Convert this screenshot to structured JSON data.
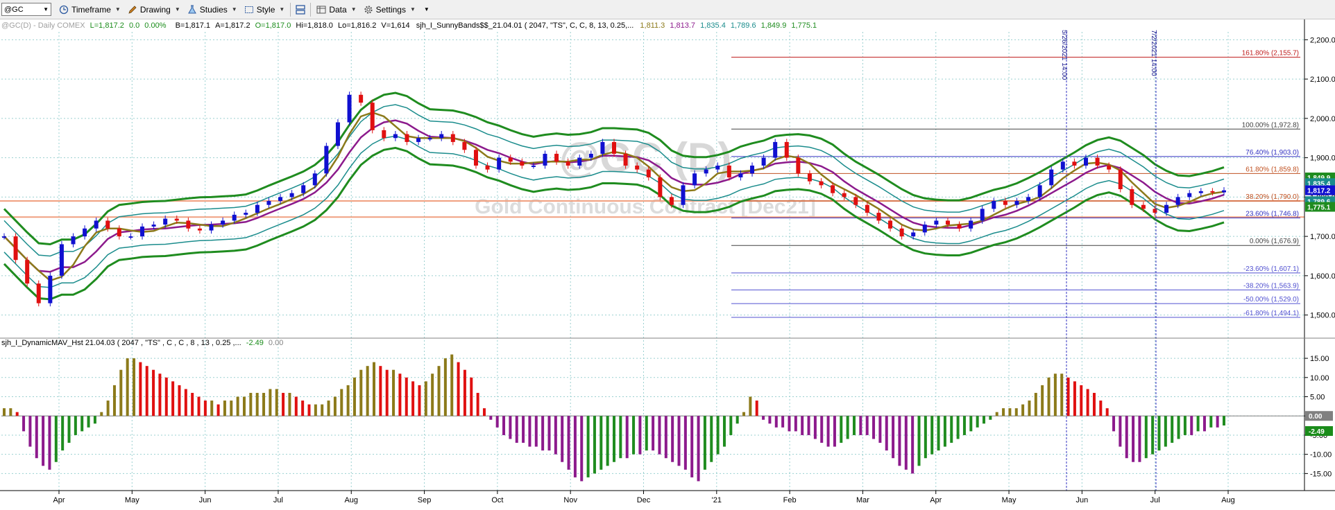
{
  "toolbar": {
    "symbol": "@GC",
    "timeframe": "Timeframe",
    "drawing": "Drawing",
    "studies": "Studies",
    "style": "Style",
    "data": "Data",
    "settings": "Settings"
  },
  "header": {
    "symbol_info": "@GC(D) - Daily  COMEX",
    "last": "L=1,817.2",
    "change": "0.0",
    "pct": "0.00%",
    "bid": "B=1,817.1",
    "ask": "A=1,817.2",
    "open": "O=1,817.0",
    "high": "Hi=1,818.0",
    "low": "Lo=1,816.2",
    "volume": "V=1,614",
    "study": "sjh_I_SunnyBands$$_21.04.01 (  2047,  \"TS\",  C,  C,    8,  13,  0.25,...",
    "study_values": [
      "1,811.3",
      "1,813.7",
      "1,835.4",
      "1,789.6",
      "1,849.9",
      "1,775.1"
    ],
    "lower_study": "sjh_I_DynamicMAV_Hst 21.04.03 ( 2047 , \"TS\" , C , C ,  8 , 13 , 0.25 ,...",
    "lower_value": "-2.49",
    "lower_zero": "0.00"
  },
  "watermark": {
    "symbol": "@GC (D)",
    "name": "Gold Continuous Contract [Dec21]"
  },
  "colors": {
    "green_band": "#1f8c1f",
    "teal_band": "#1a8c8c",
    "purple_ma": "#8c1a8c",
    "olive_ma": "#8c7a1a",
    "up_bar": "#1010d0",
    "down_bar": "#e01010",
    "fib_red": "#c02020",
    "fib_blue": "#3030c0",
    "hline": "#f0a080"
  },
  "chart_data": [
    {
      "type": "line",
      "title": "@GC(D) - Daily COMEX",
      "ylabel": "",
      "ylim": [
        1450,
        2220
      ],
      "y_ticks": [
        "2,200.0",
        "2,100.0",
        "2,000.0",
        "1,900.0",
        "1,800.0",
        "1,700.0",
        "1,600.0",
        "1,500.0"
      ],
      "y_tick_values": [
        2200,
        2100,
        2000,
        1900,
        1800,
        1700,
        1600,
        1500
      ],
      "x_labels": [
        "Apr",
        "May",
        "Jun",
        "Jul",
        "Aug",
        "Sep",
        "Oct",
        "Nov",
        "Dec",
        "'21",
        "Feb",
        "Mar",
        "Apr",
        "May",
        "Jun",
        "Jul",
        "Aug"
      ],
      "x_label_index": [
        0,
        1,
        2,
        3,
        4,
        5,
        6,
        7,
        8,
        9,
        10,
        11,
        12,
        13,
        14,
        15,
        16
      ],
      "price_series": [
        1700,
        1640,
        1580,
        1530,
        1600,
        1680,
        1700,
        1720,
        1740,
        1720,
        1700,
        1700,
        1725,
        1730,
        1745,
        1740,
        1720,
        1715,
        1730,
        1740,
        1755,
        1760,
        1780,
        1790,
        1800,
        1810,
        1830,
        1860,
        1930,
        1990,
        2060,
        2040,
        1970,
        1950,
        1960,
        1940,
        1950,
        1950,
        1960,
        1940,
        1920,
        1880,
        1870,
        1900,
        1890,
        1880,
        1880,
        1910,
        1890,
        1880,
        1900,
        1910,
        1940,
        1910,
        1880,
        1870,
        1850,
        1800,
        1780,
        1830,
        1860,
        1870,
        1880,
        1850,
        1860,
        1880,
        1900,
        1940,
        1900,
        1860,
        1840,
        1830,
        1810,
        1800,
        1780,
        1760,
        1740,
        1720,
        1700,
        1710,
        1730,
        1740,
        1730,
        1720,
        1740,
        1770,
        1790,
        1780,
        1790,
        1800,
        1830,
        1870,
        1890,
        1880,
        1900,
        1880,
        1870,
        1820,
        1780,
        1770,
        1760,
        1780,
        1800,
        1810,
        1815,
        1812,
        1817
      ],
      "series": [
        {
          "name": "1,811.3",
          "color": "#8c7a1a"
        },
        {
          "name": "1,813.7",
          "color": "#8c1a8c"
        },
        {
          "name": "1,835.4",
          "color": "#1a8c8c"
        },
        {
          "name": "1,789.6",
          "color": "#1a8c8c"
        },
        {
          "name": "1,849.9",
          "color": "#1f8c1f"
        },
        {
          "name": "1,775.1",
          "color": "#1f8c1f"
        }
      ],
      "fib_levels": [
        {
          "label": "161.80% (2,155.7)",
          "value": 2155.7,
          "color": "#c02020"
        },
        {
          "label": "100.00% (1,972.8)",
          "value": 1972.8,
          "color": "#404040"
        },
        {
          "label": "76.40% (1,903.0)",
          "value": 1903.0,
          "color": "#3030c0"
        },
        {
          "label": "61.80% (1,859.8)",
          "value": 1859.8,
          "color": "#c05020"
        },
        {
          "label": "38.20% (1,790.0)",
          "value": 1790.0,
          "color": "#c05020"
        },
        {
          "label": "23.60% (1,746.8)",
          "value": 1746.8,
          "color": "#3030c0"
        },
        {
          "label": "0.00% (1,676.9)",
          "value": 1676.9,
          "color": "#404040"
        },
        {
          "label": "-23.60% (1,607.1)",
          "value": 1607.1,
          "color": "#5050d0"
        },
        {
          "label": "-38.20% (1,563.9)",
          "value": 1563.9,
          "color": "#5050d0"
        },
        {
          "label": "-50.00% (1,529.0)",
          "value": 1529.0,
          "color": "#5050d0"
        },
        {
          "label": "-61.80% (1,494.1)",
          "value": 1494.1,
          "color": "#5050d0"
        }
      ],
      "horizontal_lines": [
        1790,
        1749
      ],
      "price_tags": [
        {
          "text": "1,849.9",
          "value": 1849.9,
          "color": "#1f8c1f"
        },
        {
          "text": "1,835.4",
          "value": 1835.4,
          "color": "#1a8c8c"
        },
        {
          "text": "1,817.2",
          "value": 1817.2,
          "color": "#1010d0"
        },
        {
          "text": "1,789.6",
          "value": 1789.6,
          "color": "#1a8c8c"
        },
        {
          "text": "1,775.1",
          "value": 1775.1,
          "color": "#1f8c1f"
        }
      ],
      "vertical_markers": [
        {
          "label": "5/26/2021 14:00"
        },
        {
          "label": "7/2/2021 14:00"
        }
      ]
    },
    {
      "type": "bar",
      "title": "sjh_I_DynamicMAV_Hst 21.04.03",
      "ylim": [
        -18,
        17
      ],
      "y_ticks": [
        "15.00",
        "10.00",
        "5.00",
        "0.00",
        "-5.00",
        "-10.00",
        "-15.00"
      ],
      "y_tick_values": [
        15,
        10,
        5,
        0,
        -5,
        -10,
        -15
      ],
      "last_value": "-2.49",
      "values": [
        2,
        2,
        1,
        -4,
        -8,
        -11,
        -13,
        -14,
        -12,
        -9,
        -7,
        -5,
        -4,
        -3,
        -2,
        1,
        4,
        8,
        12,
        15,
        15,
        14,
        13,
        12,
        11,
        10,
        9,
        8,
        7,
        6,
        5,
        4,
        4,
        3,
        4,
        4,
        5,
        5,
        6,
        6,
        6,
        7,
        7,
        6,
        6,
        5,
        4,
        3,
        3,
        3,
        4,
        5,
        7,
        8,
        10,
        12,
        13,
        14,
        13,
        12,
        12,
        11,
        10,
        9,
        8,
        9,
        11,
        13,
        15,
        16,
        14,
        12,
        10,
        6,
        2,
        -1,
        -3,
        -5,
        -6,
        -7,
        -7,
        -8,
        -8,
        -9,
        -9,
        -10,
        -12,
        -14,
        -16,
        -17,
        -16,
        -15,
        -14,
        -13,
        -12,
        -11,
        -11,
        -10,
        -10,
        -9,
        -9,
        -10,
        -11,
        -12,
        -13,
        -14,
        -16,
        -17,
        -14,
        -12,
        -10,
        -8,
        -5,
        -2,
        1,
        5,
        4,
        -1,
        -2,
        -3,
        -3,
        -4,
        -4,
        -5,
        -5,
        -6,
        -7,
        -8,
        -8,
        -7,
        -6,
        -5,
        -5,
        -5,
        -6,
        -7,
        -9,
        -11,
        -13,
        -14,
        -15,
        -13,
        -11,
        -10,
        -9,
        -8,
        -7,
        -6,
        -5,
        -4,
        -3,
        -2,
        -1,
        1,
        2,
        2,
        2,
        3,
        4,
        6,
        8,
        10,
        11,
        11,
        10,
        9,
        8,
        7,
        6,
        4,
        2,
        -4,
        -8,
        -11,
        -12,
        -12,
        -11,
        -10,
        -9,
        -8,
        -7,
        -6,
        -5,
        -5,
        -4,
        -4,
        -3,
        -3,
        -2.49
      ]
    }
  ]
}
